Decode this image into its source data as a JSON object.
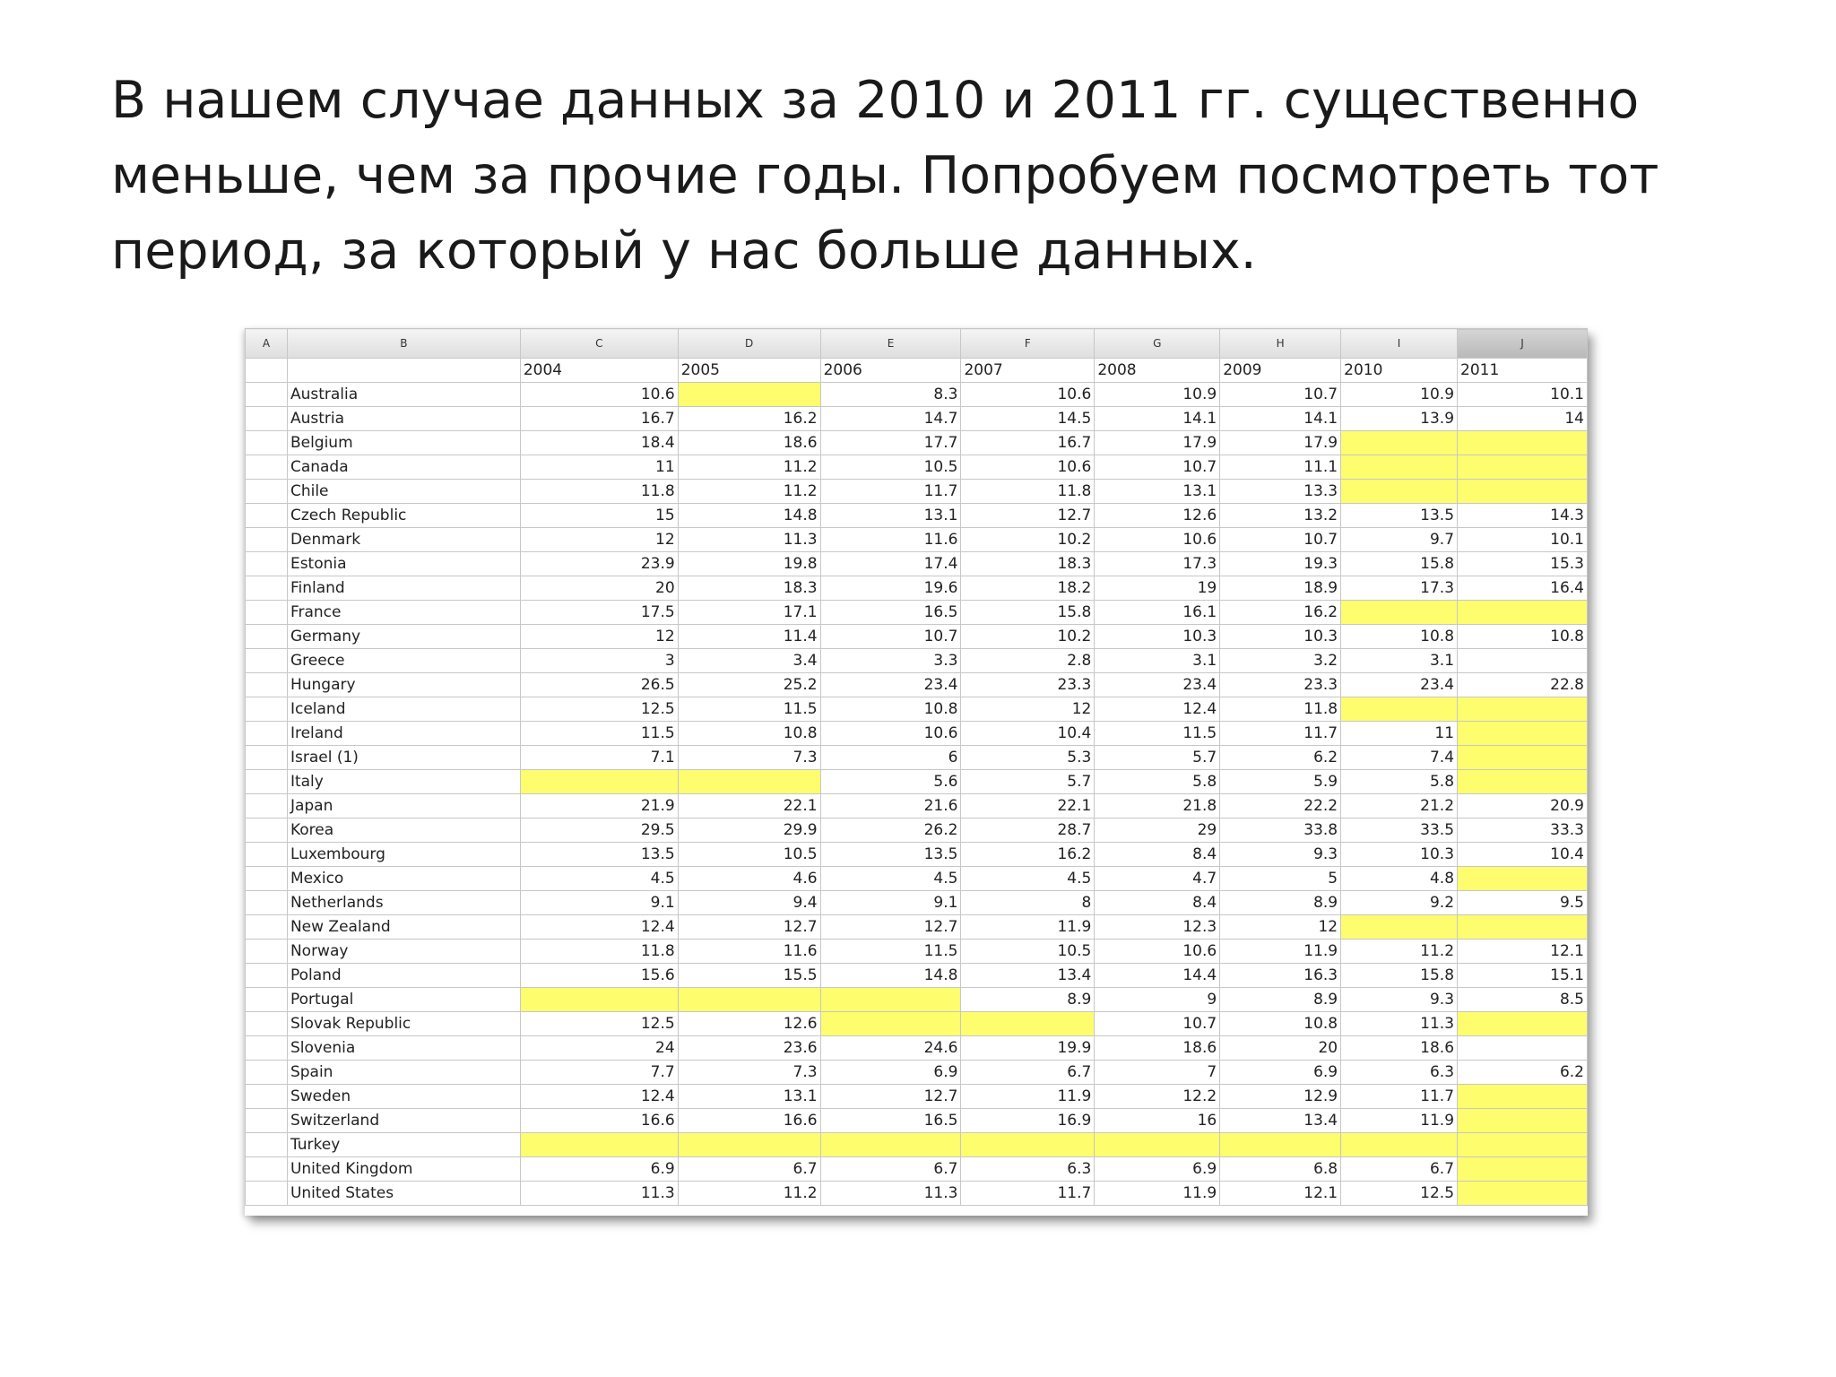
{
  "slide": {
    "text_lines": [
      "В нашем случае данных за 2010 и 2011 гг. существенно",
      "меньше, чем за прочие годы. Попробуем посмотреть тот",
      "период, за который у нас больше данных."
    ]
  },
  "sheet": {
    "column_letters": [
      "A",
      "B",
      "C",
      "D",
      "E",
      "F",
      "G",
      "H",
      "I",
      "J"
    ],
    "active_column": "J",
    "year_headers": [
      "2004",
      "2005",
      "2006",
      "2007",
      "2008",
      "2009",
      "2010",
      "2011"
    ],
    "highlight_color": "#fdfd6e",
    "rows": [
      {
        "country": "Australia",
        "values": [
          "10.6",
          "",
          "8.3",
          "10.6",
          "10.9",
          "10.7",
          "10.9",
          "10.1"
        ],
        "yellow": [
          1
        ]
      },
      {
        "country": "Austria",
        "values": [
          "16.7",
          "16.2",
          "14.7",
          "14.5",
          "14.1",
          "14.1",
          "13.9",
          "14"
        ],
        "yellow": []
      },
      {
        "country": "Belgium",
        "values": [
          "18.4",
          "18.6",
          "17.7",
          "16.7",
          "17.9",
          "17.9",
          "",
          ""
        ],
        "yellow": [
          6,
          7
        ]
      },
      {
        "country": "Canada",
        "values": [
          "11",
          "11.2",
          "10.5",
          "10.6",
          "10.7",
          "11.1",
          "",
          ""
        ],
        "yellow": [
          6,
          7
        ]
      },
      {
        "country": "Chile",
        "values": [
          "11.8",
          "11.2",
          "11.7",
          "11.8",
          "13.1",
          "13.3",
          "",
          ""
        ],
        "yellow": [
          6,
          7
        ]
      },
      {
        "country": "Czech Republic",
        "values": [
          "15",
          "14.8",
          "13.1",
          "12.7",
          "12.6",
          "13.2",
          "13.5",
          "14.3"
        ],
        "yellow": []
      },
      {
        "country": "Denmark",
        "values": [
          "12",
          "11.3",
          "11.6",
          "10.2",
          "10.6",
          "10.7",
          "9.7",
          "10.1"
        ],
        "yellow": []
      },
      {
        "country": "Estonia",
        "values": [
          "23.9",
          "19.8",
          "17.4",
          "18.3",
          "17.3",
          "19.3",
          "15.8",
          "15.3"
        ],
        "yellow": []
      },
      {
        "country": "Finland",
        "values": [
          "20",
          "18.3",
          "19.6",
          "18.2",
          "19",
          "18.9",
          "17.3",
          "16.4"
        ],
        "yellow": []
      },
      {
        "country": "France",
        "values": [
          "17.5",
          "17.1",
          "16.5",
          "15.8",
          "16.1",
          "16.2",
          "",
          ""
        ],
        "yellow": [
          6,
          7
        ]
      },
      {
        "country": "Germany",
        "values": [
          "12",
          "11.4",
          "10.7",
          "10.2",
          "10.3",
          "10.3",
          "10.8",
          "10.8"
        ],
        "yellow": []
      },
      {
        "country": "Greece",
        "values": [
          "3",
          "3.4",
          "3.3",
          "2.8",
          "3.1",
          "3.2",
          "3.1",
          ""
        ],
        "yellow": []
      },
      {
        "country": "Hungary",
        "values": [
          "26.5",
          "25.2",
          "23.4",
          "23.3",
          "23.4",
          "23.3",
          "23.4",
          "22.8"
        ],
        "yellow": []
      },
      {
        "country": "Iceland",
        "values": [
          "12.5",
          "11.5",
          "10.8",
          "12",
          "12.4",
          "11.8",
          "",
          ""
        ],
        "yellow": [
          6,
          7
        ]
      },
      {
        "country": "Ireland",
        "values": [
          "11.5",
          "10.8",
          "10.6",
          "10.4",
          "11.5",
          "11.7",
          "11",
          ""
        ],
        "yellow": [
          7
        ]
      },
      {
        "country": "Israel  (1)",
        "values": [
          "7.1",
          "7.3",
          "6",
          "5.3",
          "5.7",
          "6.2",
          "7.4",
          ""
        ],
        "yellow": [
          7
        ]
      },
      {
        "country": "Italy",
        "values": [
          "",
          "",
          "5.6",
          "5.7",
          "5.8",
          "5.9",
          "5.8",
          ""
        ],
        "yellow": [
          0,
          1,
          7
        ]
      },
      {
        "country": "Japan",
        "values": [
          "21.9",
          "22.1",
          "21.6",
          "22.1",
          "21.8",
          "22.2",
          "21.2",
          "20.9"
        ],
        "yellow": []
      },
      {
        "country": "Korea",
        "values": [
          "29.5",
          "29.9",
          "26.2",
          "28.7",
          "29",
          "33.8",
          "33.5",
          "33.3"
        ],
        "yellow": []
      },
      {
        "country": "Luxembourg",
        "values": [
          "13.5",
          "10.5",
          "13.5",
          "16.2",
          "8.4",
          "9.3",
          "10.3",
          "10.4"
        ],
        "yellow": []
      },
      {
        "country": "Mexico",
        "values": [
          "4.5",
          "4.6",
          "4.5",
          "4.5",
          "4.7",
          "5",
          "4.8",
          ""
        ],
        "yellow": [
          7
        ]
      },
      {
        "country": "Netherlands",
        "values": [
          "9.1",
          "9.4",
          "9.1",
          "8",
          "8.4",
          "8.9",
          "9.2",
          "9.5"
        ],
        "yellow": []
      },
      {
        "country": "New Zealand",
        "values": [
          "12.4",
          "12.7",
          "12.7",
          "11.9",
          "12.3",
          "12",
          "",
          ""
        ],
        "yellow": [
          6,
          7
        ]
      },
      {
        "country": "Norway",
        "values": [
          "11.8",
          "11.6",
          "11.5",
          "10.5",
          "10.6",
          "11.9",
          "11.2",
          "12.1"
        ],
        "yellow": []
      },
      {
        "country": "Poland",
        "values": [
          "15.6",
          "15.5",
          "14.8",
          "13.4",
          "14.4",
          "16.3",
          "15.8",
          "15.1"
        ],
        "yellow": []
      },
      {
        "country": "Portugal",
        "values": [
          "",
          "",
          "",
          "8.9",
          "9",
          "8.9",
          "9.3",
          "8.5"
        ],
        "yellow": [
          0,
          1,
          2
        ]
      },
      {
        "country": "Slovak Republic",
        "values": [
          "12.5",
          "12.6",
          "",
          "",
          "10.7",
          "10.8",
          "11.3",
          ""
        ],
        "yellow": [
          2,
          3,
          7
        ]
      },
      {
        "country": "Slovenia",
        "values": [
          "24",
          "23.6",
          "24.6",
          "19.9",
          "18.6",
          "20",
          "18.6",
          ""
        ],
        "yellow": []
      },
      {
        "country": "Spain",
        "values": [
          "7.7",
          "7.3",
          "6.9",
          "6.7",
          "7",
          "6.9",
          "6.3",
          "6.2"
        ],
        "yellow": []
      },
      {
        "country": "Sweden",
        "values": [
          "12.4",
          "13.1",
          "12.7",
          "11.9",
          "12.2",
          "12.9",
          "11.7",
          ""
        ],
        "yellow": [
          7
        ]
      },
      {
        "country": "Switzerland",
        "values": [
          "16.6",
          "16.6",
          "16.5",
          "16.9",
          "16",
          "13.4",
          "11.9",
          ""
        ],
        "yellow": [
          7
        ]
      },
      {
        "country": "Turkey",
        "values": [
          "",
          "",
          "",
          "",
          "",
          "",
          "",
          ""
        ],
        "yellow": [
          0,
          1,
          2,
          3,
          4,
          5,
          6,
          7
        ]
      },
      {
        "country": "United Kingdom",
        "values": [
          "6.9",
          "6.7",
          "6.7",
          "6.3",
          "6.9",
          "6.8",
          "6.7",
          ""
        ],
        "yellow": [
          7
        ]
      },
      {
        "country": "United States",
        "values": [
          "11.3",
          "11.2",
          "11.3",
          "11.7",
          "11.9",
          "12.1",
          "12.5",
          ""
        ],
        "yellow": [
          7
        ]
      }
    ]
  }
}
